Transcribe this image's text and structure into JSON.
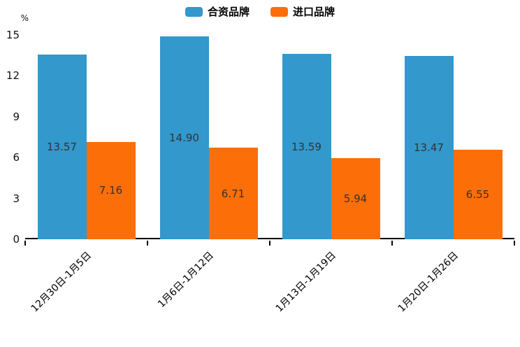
{
  "chart_data": {
    "type": "bar",
    "title": "",
    "xlabel": "",
    "ylabel": "%",
    "categories": [
      "12月30日-1月5日",
      "1月6日-1月12日",
      "1月13日-1月19日",
      "1月20日-1月26日"
    ],
    "series": [
      {
        "name": "合资品牌",
        "color": "#3398cb",
        "values": [
          13.57,
          14.9,
          13.59,
          13.47
        ]
      },
      {
        "name": "进口品牌",
        "color": "#fc6e08",
        "values": [
          7.16,
          6.71,
          5.94,
          6.55
        ]
      }
    ],
    "value_label_format": "2-decimals",
    "value_label_color": "#333333",
    "yticks": [
      0,
      3,
      6,
      9,
      12,
      15
    ],
    "ylim": [
      0,
      15
    ],
    "grid": false,
    "legend_position": "top-center",
    "axis_color": "#000000"
  }
}
